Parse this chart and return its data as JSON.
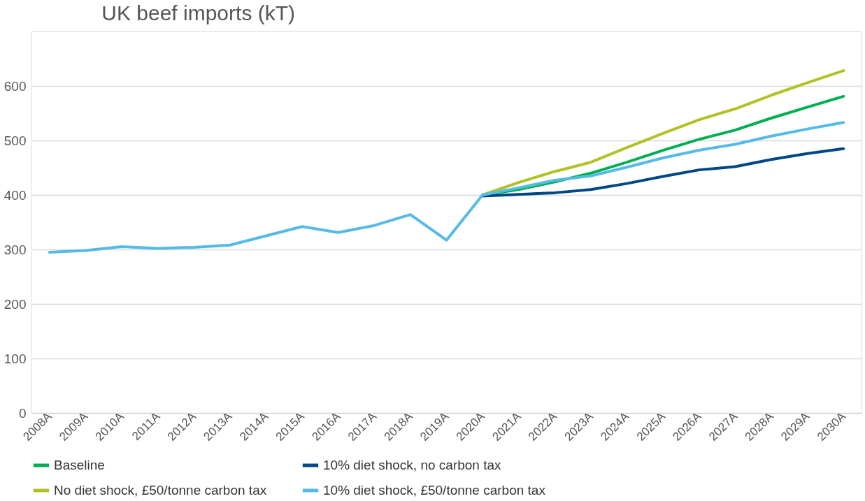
{
  "chart_data": {
    "type": "line",
    "title": "UK beef imports (kT)",
    "categories": [
      "2008A",
      "2009A",
      "2010A",
      "2011A",
      "2012A",
      "2013A",
      "2014A",
      "2015A",
      "2016A",
      "2017A",
      "2018A",
      "2019A",
      "2020A",
      "2021A",
      "2022A",
      "2023A",
      "2024A",
      "2025A",
      "2026A",
      "2027A",
      "2028A",
      "2029A",
      "2030A"
    ],
    "series": [
      {
        "name": "Baseline",
        "color": "#00b050",
        "values": [
          null,
          null,
          null,
          null,
          null,
          null,
          null,
          null,
          null,
          null,
          null,
          null,
          400,
          410,
          424,
          440,
          460,
          482,
          502,
          519,
          541,
          561,
          581
        ]
      },
      {
        "name": "10% diet shock, no carbon tax",
        "color": "#004785",
        "values": [
          null,
          null,
          null,
          null,
          null,
          null,
          null,
          null,
          null,
          null,
          null,
          null,
          398,
          401,
          404,
          410,
          421,
          434,
          446,
          452,
          465,
          476,
          485
        ]
      },
      {
        "name": "No diet shock, £50/tonne carbon tax",
        "color": "#b2c225",
        "values": [
          null,
          null,
          null,
          null,
          null,
          null,
          null,
          null,
          null,
          null,
          null,
          null,
          400,
          423,
          443,
          460,
          487,
          513,
          538,
          558,
          583,
          606,
          628
        ]
      },
      {
        "name": "10% diet shock, £50/tonne carbon tax",
        "color": "#55bbe6",
        "values": [
          295,
          298,
          305,
          302,
          304,
          308,
          325,
          342,
          331,
          344,
          364,
          317,
          400,
          413,
          427,
          435,
          451,
          468,
          482,
          493,
          508,
          521,
          533
        ]
      }
    ],
    "ylim": [
      0,
      700
    ],
    "yticks": [
      0,
      100,
      200,
      300,
      400,
      500,
      600
    ],
    "grid": "y",
    "legend": "bottom",
    "marker": "none",
    "line_style": "solid"
  }
}
